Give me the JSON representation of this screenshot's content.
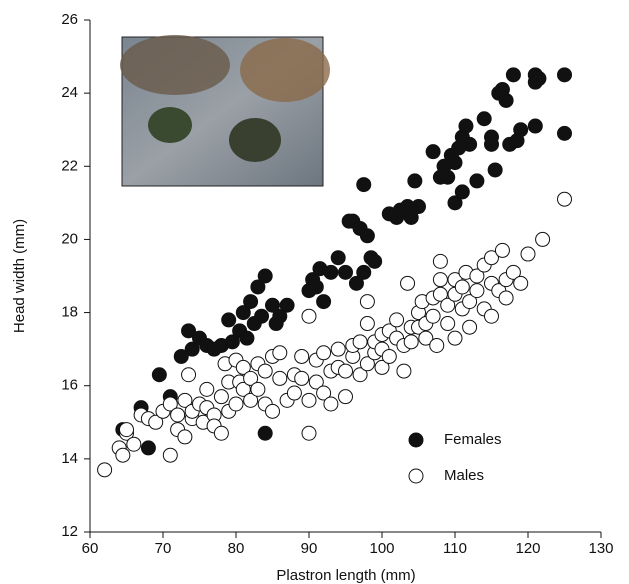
{
  "chart_data": {
    "type": "scatter",
    "x_label": "Plastron length (mm)",
    "y_label": "Head width (mm)",
    "xlim": [
      60,
      130
    ],
    "xticks": [
      60,
      70,
      80,
      90,
      100,
      110,
      120,
      130
    ],
    "ylim": [
      12,
      26
    ],
    "yticks": [
      12,
      14,
      16,
      18,
      20,
      22,
      24,
      26
    ],
    "legend": "lower right",
    "series": [
      {
        "name": "Females",
        "color": "#111111",
        "filled": true,
        "x": [
          64.5,
          67,
          68,
          69.5,
          71,
          72.5,
          73.5,
          74,
          75,
          76,
          77,
          78,
          79,
          79.5,
          80.5,
          81,
          81.5,
          82,
          82.5,
          83,
          83.5,
          84,
          84,
          85,
          85.5,
          86,
          87,
          90,
          90.5,
          91,
          91.5,
          92,
          93,
          94,
          95,
          95.5,
          96,
          96.5,
          97,
          97.5,
          97.5,
          98,
          98.5,
          99,
          101,
          102,
          102.5,
          103.5,
          104,
          104.5,
          105,
          107,
          108,
          108.5,
          109,
          109.5,
          110,
          110,
          110.5,
          111,
          111,
          111.5,
          112,
          113,
          114,
          115,
          115,
          115.5,
          116,
          116.5,
          117,
          117.5,
          118,
          118.5,
          119,
          121,
          121,
          121,
          121.5,
          125,
          125
        ],
        "y": [
          14.8,
          15.4,
          14.3,
          16.3,
          15.7,
          16.8,
          17.5,
          17,
          17.3,
          17.1,
          17,
          17.1,
          17.8,
          17.2,
          17.5,
          18,
          17.3,
          18.3,
          17.7,
          18.7,
          17.9,
          19,
          14.7,
          18.2,
          17.7,
          17.9,
          18.2,
          18.6,
          18.9,
          18.7,
          19.2,
          18.3,
          19.1,
          19.5,
          19.1,
          20.5,
          20.5,
          18.8,
          20.3,
          19.1,
          21.5,
          20.1,
          19.5,
          19.4,
          20.7,
          20.6,
          20.8,
          20.9,
          20.6,
          21.6,
          20.9,
          22.4,
          21.7,
          22,
          21.7,
          22.3,
          21,
          22.1,
          22.5,
          21.3,
          22.8,
          23.1,
          22.6,
          21.6,
          23.3,
          22.8,
          22.6,
          21.9,
          24,
          24.1,
          23.8,
          22.6,
          24.5,
          22.7,
          23,
          24.5,
          24.3,
          23.1,
          24.4,
          24.5,
          22.9
        ]
      },
      {
        "name": "Males",
        "color": "#111111",
        "filled": false,
        "x": [
          62,
          64,
          64.5,
          65,
          65,
          66,
          67,
          68,
          69,
          70,
          71,
          71,
          72,
          72,
          73,
          73,
          73.5,
          74,
          74,
          75,
          75.5,
          76,
          76,
          77,
          77,
          78,
          78,
          78.5,
          79,
          79,
          80,
          80,
          80.5,
          81,
          81,
          82,
          82,
          83,
          83,
          84,
          84,
          85,
          85,
          86,
          86,
          87,
          88,
          88,
          89,
          89,
          90,
          90,
          90,
          91,
          91,
          92,
          92,
          93,
          93,
          94,
          94,
          95,
          95,
          96,
          96,
          97,
          97,
          98,
          98,
          98,
          99,
          99,
          100,
          100,
          100,
          101,
          101,
          102,
          102,
          103,
          103,
          103.5,
          104,
          104,
          105,
          105,
          105.5,
          106,
          106,
          107,
          107,
          107.5,
          108,
          108,
          108,
          109,
          109,
          110,
          110,
          110,
          111,
          111,
          111.5,
          112,
          112,
          113,
          113,
          114,
          114,
          115,
          115,
          115,
          116,
          116.5,
          117,
          117,
          118,
          119,
          120,
          122,
          125
        ],
        "y": [
          13.7,
          14.3,
          14.1,
          14.7,
          14.8,
          14.4,
          15.2,
          15.1,
          15,
          15.3,
          14.1,
          15.5,
          14.8,
          15.2,
          14.6,
          15.6,
          16.3,
          15.1,
          15.3,
          15.5,
          15,
          15.9,
          15.4,
          15.2,
          14.9,
          14.7,
          15.7,
          16.6,
          15.3,
          16.1,
          15.5,
          16.7,
          16.1,
          15.9,
          16.5,
          15.6,
          16.2,
          15.9,
          16.6,
          16.4,
          15.5,
          16.8,
          15.3,
          16.2,
          16.9,
          15.6,
          16.3,
          15.8,
          16.8,
          16.2,
          15.6,
          14.7,
          17.9,
          16.1,
          16.7,
          15.8,
          16.9,
          16.4,
          15.5,
          16.5,
          17,
          16.4,
          15.7,
          16.8,
          17.1,
          16.3,
          17.2,
          16.6,
          17.7,
          18.3,
          16.9,
          17.2,
          16.5,
          17.4,
          17,
          17.5,
          16.8,
          17.3,
          17.8,
          17.1,
          16.4,
          18.8,
          17.6,
          17.2,
          18,
          17.6,
          18.3,
          17.7,
          17.3,
          18.4,
          17.9,
          17.1,
          18.5,
          18.9,
          19.4,
          18.2,
          17.7,
          18.5,
          18.9,
          17.3,
          18.1,
          18.7,
          19.1,
          18.3,
          17.6,
          18.6,
          19,
          18.1,
          19.3,
          18.8,
          19.5,
          17.9,
          18.6,
          19.7,
          18.9,
          18.4,
          19.1,
          18.8,
          19.6,
          20,
          21.1
        ]
      }
    ]
  }
}
